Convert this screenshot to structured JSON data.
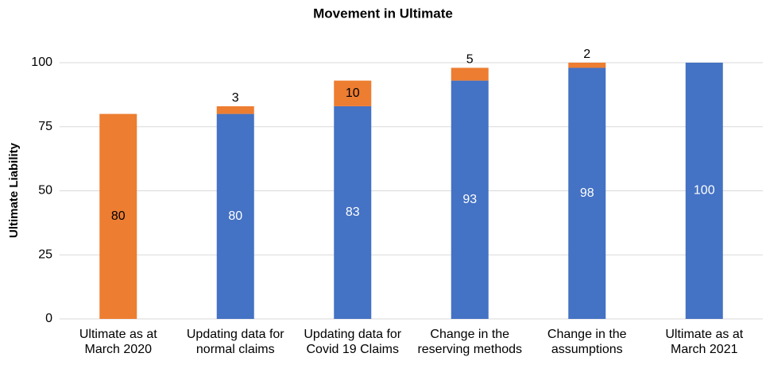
{
  "chart_data": {
    "type": "stacked_bar",
    "title": "Movement in Ultimate",
    "y_label": "Ultimate Liability",
    "categories": [
      "Ultimate as at March 2020",
      "Updating data for normal claims",
      "Updating data for Covid 19 Claims",
      "Change in the reserving methods",
      "Change in the assumptions",
      "Ultimate as at March 2021"
    ],
    "series": [
      {
        "color": "#4472c4",
        "values": [
          null,
          80,
          83,
          93,
          98,
          100
        ]
      },
      {
        "color": "#ed7d31",
        "values": [
          80,
          3,
          10,
          5,
          2,
          null
        ]
      }
    ],
    "ylim": [
      0,
      100
    ],
    "yticks": [
      0,
      25,
      50,
      75,
      100
    ],
    "grid": true
  }
}
